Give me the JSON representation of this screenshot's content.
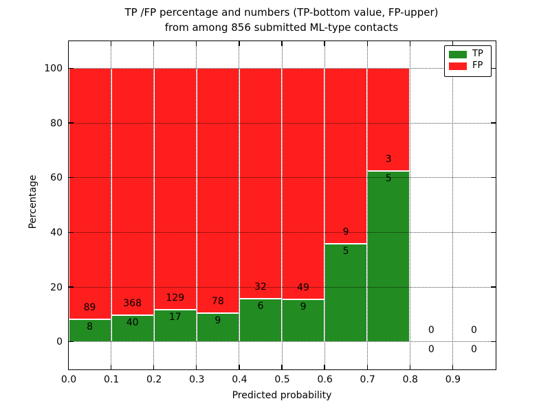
{
  "chart_data": {
    "type": "bar",
    "stacked": true,
    "title_line1": "TP /FP percentage and numbers (TP-bottom value, FP-upper)",
    "title_line2": "from among 856 submitted ML-type contacts",
    "xlabel": "Predicted probability",
    "ylabel": "Percentage",
    "total_contacts": 856,
    "xlim": [
      0.0,
      1.0
    ],
    "ylim": [
      -10,
      110
    ],
    "x_tick_values": [
      0.0,
      0.1,
      0.2,
      0.3,
      0.4,
      0.5,
      0.6,
      0.7,
      0.8,
      0.9
    ],
    "x_tick_labels": [
      "0.0",
      "0.1",
      "0.2",
      "0.3",
      "0.4",
      "0.5",
      "0.6",
      "0.7",
      "0.8",
      "0.9"
    ],
    "y_tick_values": [
      0,
      20,
      40,
      60,
      80,
      100
    ],
    "y_tick_labels": [
      "0",
      "20",
      "40",
      "60",
      "80",
      "100"
    ],
    "grid": true,
    "grid_style": "dotted",
    "legend": {
      "position": "upper right",
      "entries": [
        {
          "label": "TP",
          "color": "#228b22"
        },
        {
          "label": "FP",
          "color": "#fe1e1e"
        }
      ]
    },
    "bins": [
      {
        "x0": 0.0,
        "x1": 0.1,
        "tp": 8,
        "fp": 89,
        "tp_pct": 8.25,
        "fp_pct": 91.75
      },
      {
        "x0": 0.1,
        "x1": 0.2,
        "tp": 40,
        "fp": 368,
        "tp_pct": 9.8,
        "fp_pct": 90.2
      },
      {
        "x0": 0.2,
        "x1": 0.3,
        "tp": 17,
        "fp": 129,
        "tp_pct": 11.64,
        "fp_pct": 88.36
      },
      {
        "x0": 0.3,
        "x1": 0.4,
        "tp": 9,
        "fp": 78,
        "tp_pct": 10.34,
        "fp_pct": 89.66
      },
      {
        "x0": 0.4,
        "x1": 0.5,
        "tp": 6,
        "fp": 32,
        "tp_pct": 15.79,
        "fp_pct": 84.21
      },
      {
        "x0": 0.5,
        "x1": 0.6,
        "tp": 9,
        "fp": 49,
        "tp_pct": 15.52,
        "fp_pct": 84.48
      },
      {
        "x0": 0.6,
        "x1": 0.7,
        "tp": 5,
        "fp": 9,
        "tp_pct": 35.71,
        "fp_pct": 64.29
      },
      {
        "x0": 0.7,
        "x1": 0.8,
        "tp": 5,
        "fp": 3,
        "tp_pct": 62.5,
        "fp_pct": 37.5
      },
      {
        "x0": 0.8,
        "x1": 0.9,
        "tp": 0,
        "fp": 0,
        "tp_pct": 0,
        "fp_pct": 0
      },
      {
        "x0": 0.9,
        "x1": 1.0,
        "tp": 0,
        "fp": 0,
        "tp_pct": 0,
        "fp_pct": 0
      }
    ]
  }
}
